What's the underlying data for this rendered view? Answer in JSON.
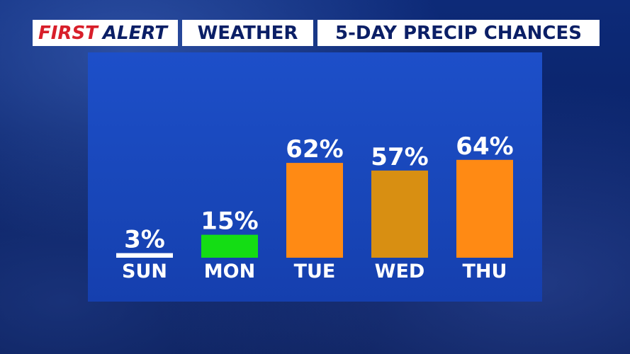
{
  "header": {
    "brand_first": "FIRST",
    "brand_alert": "ALERT",
    "section": "WEATHER",
    "title": "5-DAY PRECIP CHANCES"
  },
  "colors": {
    "brand_red": "#d81f2a",
    "navy_text": "#0b1f66",
    "panel_blue": "#1a49bf",
    "low": "#ffffff",
    "green": "#14dd14",
    "orange": "#ff8a14",
    "dark_orange": "#d88f12"
  },
  "chart_data": {
    "type": "bar",
    "title": "5-DAY PRECIP CHANCES",
    "categories": [
      "SUN",
      "MON",
      "TUE",
      "WED",
      "THU"
    ],
    "values": [
      3,
      15,
      62,
      57,
      64
    ],
    "value_labels": [
      "3%",
      "15%",
      "62%",
      "57%",
      "64%"
    ],
    "bar_colors": [
      "#ffffff",
      "#14dd14",
      "#ff8a14",
      "#d88f12",
      "#ff8a14"
    ],
    "ylim": [
      0,
      100
    ],
    "grid": false,
    "legend": "none"
  }
}
